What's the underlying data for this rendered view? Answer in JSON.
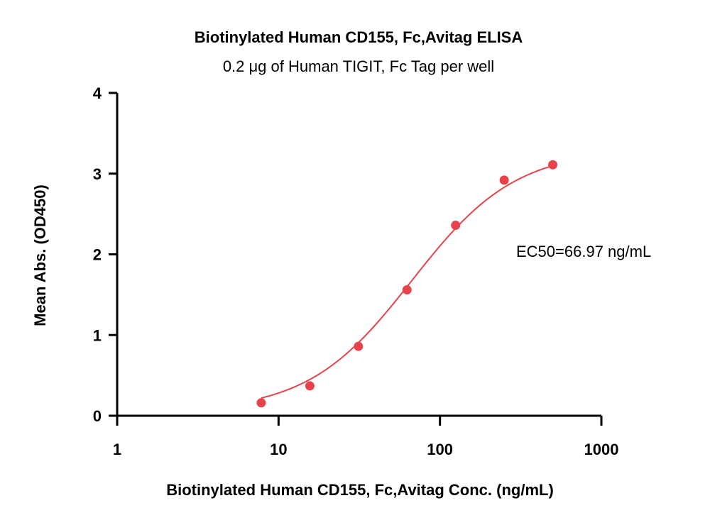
{
  "chart_data": {
    "type": "scatter",
    "title": "Biotinylated Human CD155, Fc,Avitag ELISA",
    "subtitle": "0.2 μg of Human TIGIT, Fc Tag per well",
    "xlabel": "Biotinylated Human CD155, Fc,Avitag Conc. (ng/mL)",
    "ylabel": "Mean Abs. (OD450)",
    "xscale": "log",
    "xlim": [
      1,
      1000
    ],
    "ylim": [
      0,
      4
    ],
    "x_ticks": [
      1,
      10,
      100,
      1000
    ],
    "x_tick_labels": [
      "1",
      "10",
      "100",
      "1000"
    ],
    "y_ticks": [
      0,
      1,
      2,
      3,
      4
    ],
    "y_tick_labels": [
      "0",
      "1",
      "2",
      "3",
      "4"
    ],
    "grid": false,
    "annotation": "EC50=66.97 ng/mL",
    "color": "#e8434b",
    "series": [
      {
        "x": [
          7.8125,
          15.625,
          31.25,
          62.5,
          125,
          250,
          500
        ],
        "y": [
          0.16,
          0.37,
          0.86,
          1.56,
          2.36,
          2.92,
          3.11
        ]
      }
    ],
    "fit": {
      "model": "4PL",
      "bottom": 0.05,
      "top": 3.3,
      "ec50": 66.97,
      "hill": 1.35
    }
  }
}
